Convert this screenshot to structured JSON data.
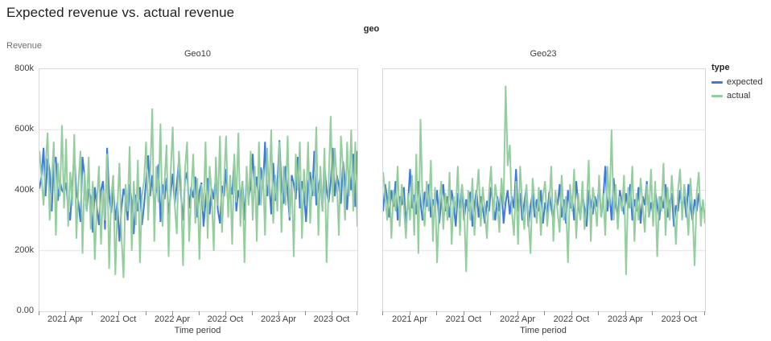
{
  "page": {
    "title": "Expected revenue vs. actual revenue"
  },
  "facet_header": "geo",
  "colors": {
    "expected": "#3e79de",
    "actual": "#94ce9f",
    "grid": "#e4e4e4",
    "plot_border": "#d9d9d9",
    "tick": "#8c8c8c"
  },
  "y_axis": {
    "title": "Revenue",
    "ticks": [
      {
        "label": "800k",
        "value": 800
      },
      {
        "label": "600k",
        "value": 600
      },
      {
        "label": "400k",
        "value": 400
      },
      {
        "label": "200k",
        "value": 200
      },
      {
        "label": "0.00",
        "value": 0
      }
    ],
    "gridline_values": [
      200,
      400,
      600
    ]
  },
  "x_axis": {
    "title": "Time period",
    "points_per_series": 156,
    "ticks": [
      {
        "pos": 0,
        "label": ""
      },
      {
        "pos": 13,
        "label": "2021 Apr"
      },
      {
        "pos": 26,
        "label": ""
      },
      {
        "pos": 39,
        "label": "2021 Oct"
      },
      {
        "pos": 52,
        "label": ""
      },
      {
        "pos": 65,
        "label": "2022 Apr"
      },
      {
        "pos": 78,
        "label": ""
      },
      {
        "pos": 91,
        "label": "2022 Oct"
      },
      {
        "pos": 104,
        "label": ""
      },
      {
        "pos": 117,
        "label": "2023 Apr"
      },
      {
        "pos": 130,
        "label": ""
      },
      {
        "pos": 143,
        "label": "2023 Oct"
      },
      {
        "pos": 155,
        "label": ""
      }
    ]
  },
  "legend": {
    "title": "type",
    "items": [
      {
        "label": "expected",
        "color": "#3e79de"
      },
      {
        "label": "actual",
        "color": "#94ce9f"
      }
    ]
  },
  "chart_data": {
    "type": "line",
    "title": "Expected revenue vs. actual revenue",
    "xlabel": "Time period",
    "ylabel": "Revenue",
    "ylim": [
      0,
      800000
    ],
    "values_unit": "thousands",
    "x_domain": [
      "2021 Jan",
      "2023 Dec"
    ],
    "x_resolution": "weekly",
    "facet_field": "geo",
    "facets": [
      {
        "title": "Geo10",
        "series": [
          {
            "name": "expected",
            "color": "#3e79de",
            "values": [
              405,
              445,
              540,
              380,
              505,
              465,
              330,
              485,
              510,
              365,
              430,
              400,
              390,
              425,
              340,
              300,
              415,
              525,
              390,
              360,
              295,
              510,
              445,
              330,
              405,
              375,
              260,
              410,
              345,
              285,
              400,
              430,
              270,
              540,
              385,
              325,
              415,
              300,
              360,
              230,
              340,
              405,
              375,
              300,
              420,
              360,
              255,
              385,
              330,
              410,
              285,
              350,
              430,
              515,
              380,
              450,
              340,
              405,
              485,
              295,
              420,
              370,
              440,
              320,
              390,
              455,
              355,
              420,
              500,
              385,
              300,
              430,
              460,
              340,
              410,
              375,
              445,
              310,
              395,
              425,
              280,
              360,
              440,
              320,
              405,
              370,
              450,
              335,
              290,
              415,
              380,
              470,
              345,
              420,
              385,
              505,
              330,
              400,
              360,
              430,
              300,
              445,
              375,
              410,
              520,
              390,
              445,
              350,
              475,
              405,
              560,
              380,
              430,
              320,
              490,
              365,
              420,
              565,
              410,
              355,
              480,
              395,
              300,
              450,
              420,
              370,
              510,
              340,
              430,
              390,
              295,
              420,
              460,
              380,
              530,
              350,
              410,
              445,
              330,
              480,
              400,
              360,
              425,
              540,
              380,
              450,
              415,
              355,
              495,
              430,
              335,
              465,
              400,
              520,
              345,
              530
            ]
          },
          {
            "name": "actual",
            "color": "#94ce9f",
            "values": [
              530,
              445,
              350,
              480,
              590,
              300,
              430,
              560,
              250,
              490,
              380,
              615,
              340,
              570,
              280,
              460,
              350,
              585,
              240,
              420,
              530,
              190,
              460,
              330,
              510,
              270,
              430,
              170,
              360,
              480,
              220,
              400,
              300,
              520,
              140,
              380,
              450,
              120,
              340,
              490,
              250,
              110,
              420,
              330,
              545,
              200,
              430,
              285,
              500,
              160,
              380,
              430,
              560,
              300,
              450,
              670,
              230,
              480,
              360,
              620,
              280,
              430,
              550,
              180,
              460,
              610,
              350,
              255,
              530,
              430,
              150,
              470,
              560,
              230,
              390,
              520,
              290,
              440,
              170,
              420,
              330,
              560,
              240,
              480,
              380,
              200,
              510,
              350,
              580,
              260,
              430,
              580,
              310,
              450,
              220,
              520,
              360,
              590,
              280,
              430,
              160,
              480,
              350,
              530,
              300,
              480,
              230,
              560,
              350,
              470,
              250,
              540,
              380,
              600,
              290,
              450,
              330,
              560,
              260,
              480,
              350,
              580,
              310,
              430,
              180,
              520,
              400,
              560,
              240,
              470,
              350,
              560,
              290,
              440,
              380,
              610,
              250,
              480,
              330,
              540,
              160,
              420,
              645,
              360,
              540,
              430,
              250,
              580,
              470,
              300,
              560,
              380,
              600,
              330,
              560,
              280
            ]
          }
        ]
      },
      {
        "title": "Geo23",
        "series": [
          {
            "name": "expected",
            "color": "#3e79de",
            "values": [
              330,
              420,
              370,
              310,
              400,
              345,
              430,
              300,
              380,
              350,
              410,
              290,
              360,
              470,
              340,
              385,
              320,
              430,
              360,
              300,
              395,
              345,
              420,
              310,
              370,
              335,
              400,
              290,
              360,
              420,
              330,
              380,
              310,
              400,
              350,
              280,
              390,
              340,
              415,
              300,
              370,
              330,
              395,
              280,
              350,
              400,
              310,
              380,
              340,
              290,
              365,
              330,
              410,
              350,
              300,
              380,
              330,
              420,
              290,
              360,
              400,
              320,
              380,
              340,
              470,
              330,
              390,
              300,
              360,
              410,
              280,
              350,
              390,
              310,
              370,
              330,
              400,
              290,
              360,
              320,
              395,
              340,
              300,
              380,
              350,
              420,
              310,
              370,
              290,
              400,
              340,
              380,
              300,
              430,
              350,
              310,
              390,
              340,
              280,
              400,
              360,
              320,
              380,
              345,
              420,
              310,
              370,
              480,
              330,
              390,
              300,
              440,
              350,
              310,
              400,
              360,
              320,
              390,
              340,
              420,
              300,
              370,
              330,
              410,
              290,
              380,
              350,
              430,
              310,
              360,
              320,
              400,
              350,
              300,
              380,
              340,
              420,
              310,
              360,
              390,
              280,
              350,
              330,
              400,
              340,
              380,
              310,
              420,
              350,
              300,
              370,
              330,
              390,
              320,
              360,
              310
            ]
          },
          {
            "name": "actual",
            "color": "#94ce9f",
            "values": [
              460,
              380,
              300,
              430,
              240,
              400,
              330,
              480,
              280,
              420,
              350,
              240,
              390,
              300,
              450,
              250,
              520,
              190,
              635,
              360,
              280,
              430,
              330,
              500,
              230,
              410,
              160,
              350,
              430,
              270,
              390,
              300,
              460,
              220,
              380,
              330,
              480,
              250,
              420,
              350,
              130,
              400,
              300,
              440,
              250,
              380,
              470,
              280,
              410,
              330,
              240,
              390,
              480,
              300,
              420,
              360,
              260,
              440,
              350,
              745,
              480,
              550,
              330,
              250,
              430,
              220,
              480,
              350,
              270,
              420,
              310,
              190,
              440,
              360,
              290,
              410,
              250,
              380,
              430,
              280,
              360,
              480,
              230,
              400,
              330,
              260,
              450,
              300,
              380,
              160,
              420,
              330,
              470,
              240,
              390,
              300,
              430,
              270,
              350,
              500,
              230,
              410,
              360,
              280,
              450,
              310,
              390,
              250,
              480,
              350,
              600,
              300,
              420,
              270,
              380,
              330,
              450,
              120,
              410,
              340,
              480,
              230,
              390,
              300,
              440,
              350,
              260,
              420,
              310,
              470,
              280,
              430,
              180,
              380,
              330,
              490,
              250,
              410,
              300,
              450,
              350,
              220,
              400,
              470,
              300,
              420,
              360,
              250,
              440,
              330,
              150,
              390,
              460,
              280,
              370,
              290
            ]
          }
        ]
      }
    ]
  }
}
